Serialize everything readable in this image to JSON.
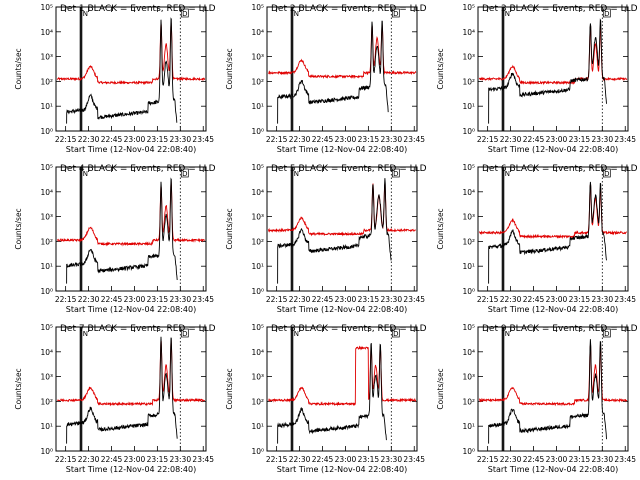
{
  "colors": {
    "events": "#000000",
    "lld": "#e00000",
    "axis": "#000000"
  },
  "common": {
    "ylabel": "Counts/sec",
    "xlabel": "Start Time (12-Nov-04 22:08:40)",
    "xticks": [
      "22:15",
      "22:30",
      "22:45",
      "23:00",
      "23:15",
      "23:30",
      "23:45"
    ],
    "yticks": [
      "10⁰",
      "10¹",
      "10²",
      "10³",
      "10⁴",
      "10⁵"
    ],
    "vline_labels": [
      "N",
      "D"
    ]
  },
  "chart_data": [
    {
      "type": "line",
      "title": "Det 1 BLACK = Events, RED = LLD",
      "xlabel": "Start Time (12-Nov-04 22:08:40)",
      "ylabel": "Counts/sec",
      "ylim": [
        1,
        100000
      ],
      "series": [
        {
          "name": "Events",
          "color": "#000000"
        },
        {
          "name": "LLD",
          "color": "#e00000"
        }
      ]
    },
    {
      "type": "line",
      "title": "Det 2 BLACK = Events, RED = LLD",
      "xlabel": "Start Time (12-Nov-04 22:08:40)",
      "ylabel": "Counts/sec",
      "ylim": [
        1,
        100000
      ],
      "series": [
        {
          "name": "Events",
          "color": "#000000"
        },
        {
          "name": "LLD",
          "color": "#e00000"
        }
      ]
    },
    {
      "type": "line",
      "title": "Det 3 BLACK = Events, RED = LLD",
      "xlabel": "Start Time (12-Nov-04 22:08:40)",
      "ylabel": "Counts/sec",
      "ylim": [
        1,
        100000
      ],
      "series": [
        {
          "name": "Events",
          "color": "#000000"
        },
        {
          "name": "LLD",
          "color": "#e00000"
        }
      ]
    },
    {
      "type": "line",
      "title": "Det 4 BLACK = Events, RED = LLD",
      "xlabel": "Start Time (12-Nov-04 22:08:40)",
      "ylabel": "Counts/sec",
      "ylim": [
        1,
        100000
      ],
      "series": [
        {
          "name": "Events",
          "color": "#000000"
        },
        {
          "name": "LLD",
          "color": "#e00000"
        }
      ]
    },
    {
      "type": "line",
      "title": "Det 5 BLACK = Events, RED = LLD",
      "xlabel": "Start Time (12-Nov-04 22:08:40)",
      "ylabel": "Counts/sec",
      "ylim": [
        1,
        100000
      ],
      "series": [
        {
          "name": "Events",
          "color": "#000000"
        },
        {
          "name": "LLD",
          "color": "#e00000"
        }
      ]
    },
    {
      "type": "line",
      "title": "Det 6 BLACK = Events, RED = LLD",
      "xlabel": "Start Time (12-Nov-04 22:08:40)",
      "ylabel": "Counts/sec",
      "ylim": [
        1,
        100000
      ],
      "series": [
        {
          "name": "Events",
          "color": "#000000"
        },
        {
          "name": "LLD",
          "color": "#e00000"
        }
      ]
    },
    {
      "type": "line",
      "title": "Det 7 BLACK = Events, RED = LLD",
      "xlabel": "Start Time (12-Nov-04 22:08:40)",
      "ylabel": "Counts/sec",
      "ylim": [
        1,
        100000
      ],
      "series": [
        {
          "name": "Events",
          "color": "#000000"
        },
        {
          "name": "LLD",
          "color": "#e00000"
        }
      ]
    },
    {
      "type": "line",
      "title": "Det 8 BLACK = Events, RED = LLD",
      "xlabel": "Start Time (12-Nov-04 22:08:40)",
      "ylabel": "Counts/sec",
      "ylim": [
        1,
        100000
      ],
      "series": [
        {
          "name": "Events",
          "color": "#000000"
        },
        {
          "name": "LLD",
          "color": "#e00000"
        }
      ]
    },
    {
      "type": "line",
      "title": "Det 9 BLACK = Events, RED = LLD",
      "xlabel": "Start Time (12-Nov-04 22:08:40)",
      "ylabel": "Counts/sec",
      "ylim": [
        1,
        100000
      ],
      "series": [
        {
          "name": "Events",
          "color": "#000000"
        },
        {
          "name": "LLD",
          "color": "#e00000"
        }
      ]
    }
  ]
}
